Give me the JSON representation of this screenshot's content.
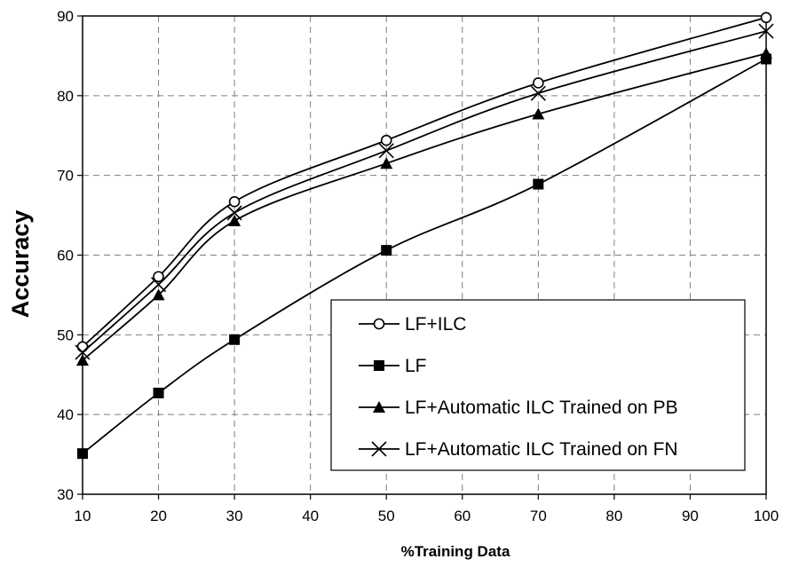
{
  "chart_data": {
    "type": "line",
    "title": "",
    "xlabel": "%Training Data",
    "ylabel": "Accuracy",
    "xlim": [
      10,
      100
    ],
    "ylim": [
      30,
      90
    ],
    "xticks": [
      10,
      20,
      30,
      40,
      50,
      60,
      70,
      80,
      90,
      100
    ],
    "yticks": [
      30,
      40,
      50,
      60,
      70,
      80,
      90
    ],
    "grid": true,
    "legend_position": "bottom-right",
    "x": [
      10,
      20,
      30,
      50,
      70,
      100
    ],
    "series": [
      {
        "name": "LF+ILC",
        "marker": "circle-open",
        "color": "#000000",
        "values": [
          48.5,
          57.3,
          66.7,
          74.4,
          81.6,
          89.8
        ]
      },
      {
        "name": "LF",
        "marker": "square-filled",
        "color": "#000000",
        "values": [
          35.1,
          42.7,
          49.4,
          60.6,
          68.9,
          84.6
        ]
      },
      {
        "name": "LF+Automatic ILC Trained on PB",
        "marker": "triangle-filled",
        "color": "#000000",
        "values": [
          46.8,
          55.0,
          64.3,
          71.5,
          77.7,
          85.3
        ]
      },
      {
        "name": "LF+Automatic ILC Trained on FN",
        "marker": "x",
        "color": "#000000",
        "values": [
          47.8,
          56.3,
          65.3,
          73.1,
          80.3,
          88.1
        ]
      }
    ]
  }
}
